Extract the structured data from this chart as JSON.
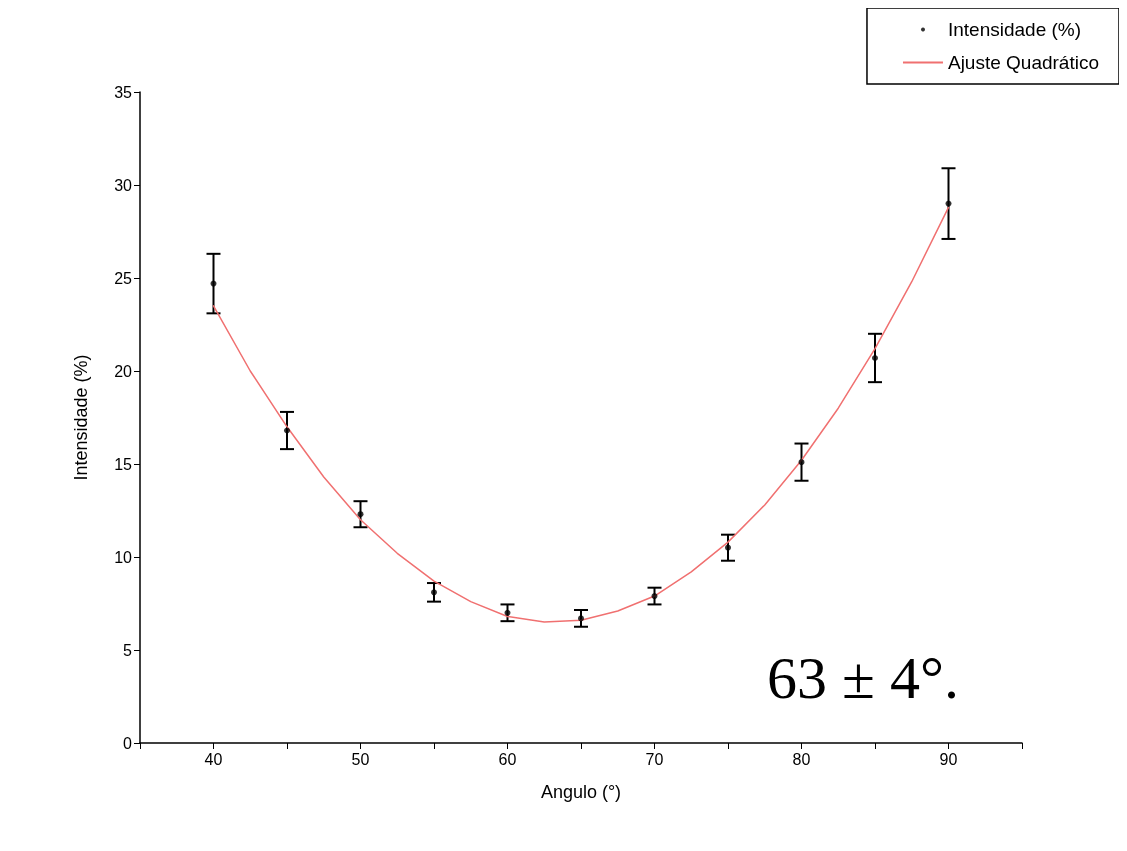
{
  "chart_data": {
    "type": "scatter",
    "xlabel": "Angulo (°)",
    "ylabel": "Intensidade (%)",
    "xlim": [
      35,
      95
    ],
    "xticks": [
      {
        "value": 35,
        "label": null
      },
      40,
      {
        "value": 45,
        "label": null
      },
      50,
      {
        "value": 55,
        "label": null
      },
      60,
      {
        "value": 65,
        "label": null
      },
      70,
      {
        "value": 75,
        "label": null
      },
      80,
      {
        "value": 85,
        "label": null
      },
      90,
      {
        "value": 95,
        "label": null
      }
    ],
    "ylim": [
      0,
      35
    ],
    "yticks": [
      0,
      5,
      10,
      15,
      20,
      25,
      30,
      35
    ],
    "grid": false,
    "legend": "top right",
    "marker": "circle",
    "annotations": [
      "63 ± 4°."
    ],
    "series": [
      {
        "name": "Intensidade (%)",
        "type": "scatter",
        "color": "#000000",
        "x": [
          40,
          45,
          50,
          55,
          60,
          65,
          70,
          75,
          80,
          85,
          90
        ],
        "values": [
          24.7,
          16.8,
          12.3,
          8.1,
          7.0,
          6.7,
          7.9,
          10.5,
          15.1,
          20.7,
          29.0
        ],
        "errors": [
          1.6,
          1.0,
          0.7,
          0.5,
          0.45,
          0.45,
          0.45,
          0.7,
          1.0,
          1.3,
          1.9
        ]
      },
      {
        "name": "Ajuste Quadrático",
        "type": "line",
        "color": "#f07070",
        "marker": "none",
        "line_style": "solid",
        "x": [
          40,
          42.5,
          45,
          47.5,
          50,
          52.5,
          55,
          57.5,
          60,
          62.5,
          65,
          67.5,
          70,
          72.5,
          75,
          77.5,
          80,
          82.5,
          85,
          87.5,
          90
        ],
        "values": [
          23.5,
          20.0,
          17.0,
          14.3,
          12.0,
          10.2,
          8.7,
          7.6,
          6.8,
          6.5,
          6.6,
          7.1,
          7.9,
          9.2,
          10.8,
          12.8,
          15.2,
          18.0,
          21.2,
          24.8,
          28.8
        ]
      }
    ]
  }
}
